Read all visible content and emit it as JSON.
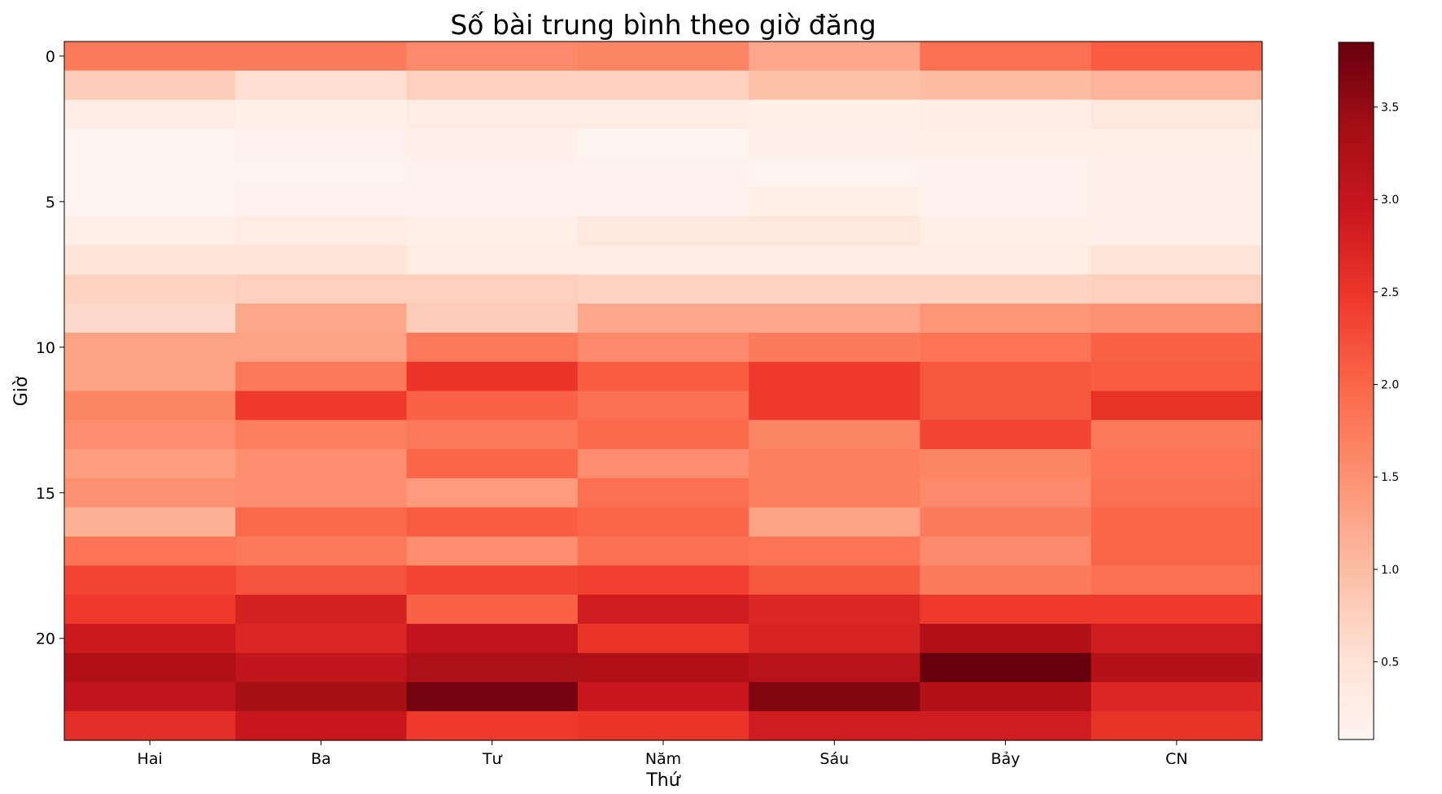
{
  "chart_data": {
    "type": "heatmap",
    "title": "Số bài trung bình theo giờ đăng",
    "xlabel": "Thứ",
    "ylabel": "Giờ",
    "x_categories": [
      "Hai",
      "Ba",
      "Tư",
      "Năm",
      "Sáu",
      "Bảy",
      "CN"
    ],
    "y_ticks": [
      "0",
      "5",
      "10",
      "15",
      "20"
    ],
    "y_tick_values": [
      0,
      5,
      10,
      15,
      20
    ],
    "hours": [
      0,
      1,
      2,
      3,
      4,
      5,
      6,
      7,
      8,
      9,
      10,
      11,
      12,
      13,
      14,
      15,
      16,
      17,
      18,
      19,
      20,
      21,
      22,
      23
    ],
    "values": [
      [
        1.75,
        1.75,
        1.6,
        1.65,
        1.25,
        1.9,
        2.1
      ],
      [
        0.8,
        0.55,
        0.75,
        0.75,
        0.95,
        1.0,
        1.1
      ],
      [
        0.25,
        0.2,
        0.3,
        0.3,
        0.2,
        0.25,
        0.4
      ],
      [
        0.12,
        0.15,
        0.18,
        0.08,
        0.18,
        0.22,
        0.22
      ],
      [
        0.12,
        0.12,
        0.15,
        0.15,
        0.12,
        0.15,
        0.18
      ],
      [
        0.12,
        0.15,
        0.15,
        0.15,
        0.22,
        0.15,
        0.18
      ],
      [
        0.22,
        0.3,
        0.22,
        0.4,
        0.4,
        0.22,
        0.18
      ],
      [
        0.45,
        0.45,
        0.3,
        0.3,
        0.3,
        0.3,
        0.45
      ],
      [
        0.7,
        0.75,
        0.75,
        0.7,
        0.7,
        0.7,
        0.75
      ],
      [
        0.65,
        1.25,
        0.8,
        1.25,
        1.25,
        1.45,
        1.5
      ],
      [
        1.3,
        1.3,
        1.8,
        1.6,
        1.75,
        1.85,
        2.05
      ],
      [
        1.3,
        1.8,
        2.5,
        2.1,
        2.45,
        2.15,
        2.1
      ],
      [
        1.65,
        2.45,
        2.05,
        1.9,
        2.45,
        2.15,
        2.55
      ],
      [
        1.55,
        1.7,
        1.8,
        1.95,
        1.65,
        2.35,
        1.8
      ],
      [
        1.35,
        1.55,
        2.0,
        1.55,
        1.7,
        1.65,
        1.85
      ],
      [
        1.5,
        1.55,
        1.4,
        1.9,
        1.7,
        1.6,
        1.9
      ],
      [
        1.15,
        1.95,
        2.1,
        2.0,
        1.3,
        1.75,
        2.0
      ],
      [
        1.85,
        1.8,
        1.55,
        1.9,
        1.85,
        1.6,
        2.0
      ],
      [
        2.35,
        2.2,
        2.35,
        2.4,
        2.15,
        1.75,
        1.9
      ],
      [
        2.45,
        2.8,
        2.05,
        2.85,
        2.7,
        2.45,
        2.45
      ],
      [
        2.9,
        2.7,
        3.05,
        2.5,
        2.75,
        3.25,
        2.85
      ],
      [
        3.25,
        3.05,
        3.3,
        3.25,
        3.15,
        3.85,
        3.2
      ],
      [
        3.05,
        3.35,
        3.75,
        2.95,
        3.65,
        3.25,
        2.7
      ],
      [
        2.6,
        2.95,
        2.45,
        2.5,
        2.85,
        2.85,
        2.55
      ]
    ],
    "colorbar": {
      "ticks": [
        "0.5",
        "1.0",
        "1.5",
        "2.0",
        "2.5",
        "3.0",
        "3.5"
      ],
      "tick_values": [
        0.5,
        1.0,
        1.5,
        2.0,
        2.5,
        3.0,
        3.5
      ],
      "vmin": 0.08,
      "vmax": 3.85,
      "colormap": "Reds"
    }
  }
}
